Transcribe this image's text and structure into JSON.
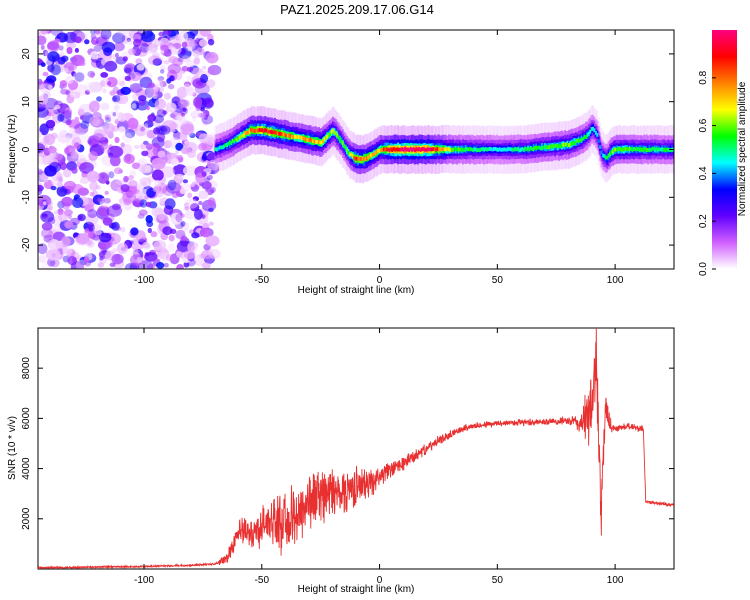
{
  "title": "PAZ1.2025.209.17.06.G14",
  "chart_data": [
    {
      "type": "heatmap",
      "xlabel": "Height of straight line (km)",
      "ylabel": "Frequency (Hz)",
      "xlim": [
        -145,
        125
      ],
      "ylim": [
        -25,
        25
      ],
      "xticks": [
        -100,
        -50,
        0,
        50,
        100
      ],
      "yticks": [
        -20,
        -10,
        0,
        10,
        20
      ],
      "colorbar": {
        "label": "Normalized spectral amplitude",
        "range": [
          0,
          1
        ],
        "ticks": [
          0.0,
          0.2,
          0.4,
          0.6,
          0.8
        ],
        "colormap": [
          "#ffffff",
          "#d060ff",
          "#6000ff",
          "#0000ff",
          "#00ffff",
          "#00ff00",
          "#ffff00",
          "#ff8000",
          "#ff0000",
          "#ff0080"
        ]
      },
      "noise_region_x": [
        -145,
        -70
      ],
      "ridge": {
        "x": [
          -70,
          -65,
          -60,
          -55,
          -50,
          -45,
          -40,
          -35,
          -30,
          -25,
          -20,
          -17,
          -13,
          -10,
          -7,
          -3,
          0,
          5,
          10,
          20,
          30,
          40,
          50,
          60,
          70,
          80,
          85,
          88,
          90,
          92,
          94,
          96,
          98,
          100,
          110,
          125
        ],
        "y": [
          0,
          1,
          2.5,
          4,
          4,
          3.5,
          3,
          2.5,
          2,
          1.5,
          4,
          2,
          -1,
          -2,
          -2,
          -1,
          0,
          0,
          0,
          0,
          0,
          0,
          0,
          0,
          0.5,
          1,
          2,
          3,
          4.5,
          3,
          -1,
          -2,
          -0.5,
          0,
          0,
          0
        ],
        "amp": [
          0.45,
          0.5,
          0.6,
          0.8,
          0.9,
          0.85,
          0.8,
          0.7,
          0.75,
          0.7,
          0.6,
          0.55,
          0.6,
          0.85,
          0.8,
          0.7,
          0.75,
          0.95,
          1.0,
          1.0,
          0.6,
          0.5,
          0.45,
          0.5,
          0.55,
          0.6,
          0.55,
          0.5,
          0.45,
          0.4,
          0.4,
          0.5,
          0.6,
          0.6,
          0.55,
          0.5
        ]
      }
    },
    {
      "type": "line",
      "xlabel": "Height of straight line (km)",
      "ylabel": "SNR (10 * v/v)",
      "xlim": [
        -145,
        125
      ],
      "ylim": [
        0,
        9600
      ],
      "xticks": [
        -100,
        -50,
        0,
        50,
        100
      ],
      "yticks": [
        2000,
        4000,
        6000,
        8000
      ],
      "color": "#e83030",
      "series": [
        {
          "x": [
            -145,
            -100,
            -80,
            -70,
            -65,
            -60,
            -55,
            -50,
            -45,
            -40,
            -35,
            -30,
            -25,
            -20,
            -15,
            -10,
            -5,
            0,
            5,
            10,
            15,
            20,
            25,
            30,
            35,
            40,
            50,
            60,
            70,
            80,
            85,
            88,
            90,
            92,
            94,
            96,
            98,
            100,
            105,
            110,
            112,
            113,
            115,
            120,
            125
          ],
          "y": [
            50,
            100,
            150,
            200,
            400,
            1500,
            1400,
            1700,
            2000,
            1700,
            2200,
            2700,
            3000,
            3000,
            3100,
            3300,
            3400,
            3700,
            3950,
            4200,
            4500,
            4800,
            5100,
            5350,
            5600,
            5700,
            5800,
            5850,
            5850,
            5900,
            5800,
            6000,
            6200,
            8800,
            2000,
            6500,
            5700,
            5600,
            5700,
            5600,
            5600,
            2700,
            2650,
            2600,
            2550
          ],
          "jitter": [
            0,
            0,
            0,
            0,
            300,
            600,
            700,
            900,
            1100,
            1400,
            1500,
            1400,
            1300,
            1200,
            1100,
            900,
            700,
            500,
            400,
            350,
            300,
            250,
            200,
            180,
            160,
            150,
            150,
            150,
            150,
            180,
            500,
            1200,
            2000,
            1500,
            1600,
            900,
            400,
            150,
            150,
            150,
            150,
            100,
            80,
            80,
            80
          ]
        }
      ]
    }
  ]
}
